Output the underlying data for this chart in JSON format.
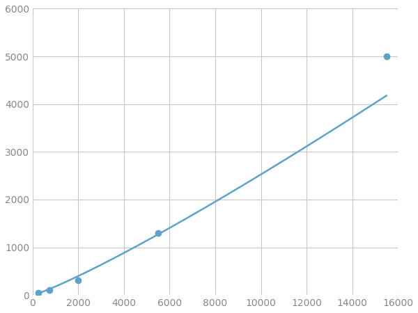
{
  "x_points": [
    250,
    750,
    2000,
    5500,
    15500
  ],
  "y_points": [
    50,
    100,
    310,
    1300,
    5000
  ],
  "line_color": "#5BA3C9",
  "marker_color": "#5BA3C9",
  "marker_size": 6,
  "line_width": 1.8,
  "xlim": [
    0,
    16000
  ],
  "ylim": [
    0,
    6000
  ],
  "xticks": [
    0,
    2000,
    4000,
    6000,
    8000,
    10000,
    12000,
    14000,
    16000
  ],
  "yticks": [
    0,
    1000,
    2000,
    3000,
    4000,
    5000,
    6000
  ],
  "grid_color": "#c8c8c8",
  "background_color": "#ffffff",
  "figsize": [
    6.0,
    4.5
  ],
  "dpi": 100
}
